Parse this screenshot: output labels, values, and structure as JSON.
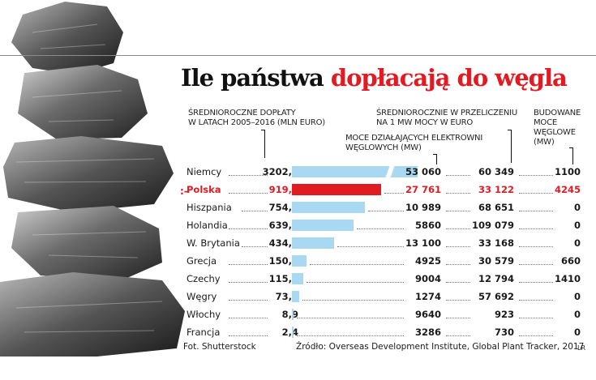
{
  "title_part1": "Ile państwa",
  "title_part2": "dopłacają do węgla",
  "headers": {
    "h1_line1": "Średnioroczne dopłaty",
    "h1_line2": "w latach 2005–2016 (mln euro)",
    "h2_line1": "Moce działających elektrowni",
    "h2_line2": "węglowych (MW)",
    "h3_line1": "Średniorocznie w przeliczeniu",
    "h3_line2": "na 1 MW mocy w euro",
    "h4_line1": "Budowane",
    "h4_line2": "moce",
    "h4_line3": "węglowe",
    "h4_line4": "(MW)"
  },
  "chart_data": {
    "type": "table",
    "title": "Ile państwa dopłacają do węgla",
    "columns": [
      "Średnioroczne dopłaty w latach 2005–2016 (mln euro)",
      "Moce działających elektrowni węglowych (MW)",
      "Średniorocznie w przeliczeniu na 1 MW mocy w euro",
      "Budowane moce węglowe (MW)"
    ],
    "highlight": "Polska",
    "highlight_color": "#e11b22",
    "bar_color": "#a9d8f2",
    "bar_series": "subsidy",
    "rows": [
      {
        "country": "Niemcy",
        "subsidy": 3202.1,
        "subsidy_label": "3202,1",
        "capacity_label": "53 060",
        "per_mw_label": "60 349",
        "building_label": "1100",
        "bar_broken": true
      },
      {
        "country": "Polska",
        "subsidy": 919.5,
        "subsidy_label": "919,5",
        "capacity_label": "27 761",
        "per_mw_label": "33 122",
        "building_label": "4245",
        "bar_broken": false
      },
      {
        "country": "Hiszpania",
        "subsidy": 754.4,
        "subsidy_label": "754,4",
        "capacity_label": "10 989",
        "per_mw_label": "68 651",
        "building_label": "0",
        "bar_broken": false
      },
      {
        "country": "Holandia",
        "subsidy": 639.2,
        "subsidy_label": "639,2",
        "capacity_label": "5860",
        "per_mw_label": "109 079",
        "building_label": "0",
        "bar_broken": false
      },
      {
        "country": "W. Brytania",
        "subsidy": 434.5,
        "subsidy_label": "434,5",
        "capacity_label": "13 100",
        "per_mw_label": "33 168",
        "building_label": "0",
        "bar_broken": false
      },
      {
        "country": "Grecja",
        "subsidy": 150.6,
        "subsidy_label": "150,6",
        "capacity_label": "4925",
        "per_mw_label": "30 579",
        "building_label": "660",
        "bar_broken": false
      },
      {
        "country": "Czechy",
        "subsidy": 115.2,
        "subsidy_label": "115,2",
        "capacity_label": "9004",
        "per_mw_label": "12 794",
        "building_label": "1410",
        "bar_broken": false
      },
      {
        "country": "Węgry",
        "subsidy": 73.5,
        "subsidy_label": "73,5",
        "capacity_label": "1274",
        "per_mw_label": "57 692",
        "building_label": "0",
        "bar_broken": false
      },
      {
        "country": "Włochy",
        "subsidy": 8.9,
        "subsidy_label": "8,9",
        "capacity_label": "9640",
        "per_mw_label": "923",
        "building_label": "0",
        "bar_broken": false
      },
      {
        "country": "Francja",
        "subsidy": 2.4,
        "subsidy_label": "2,4",
        "capacity_label": "3286",
        "per_mw_label": "730",
        "building_label": "0",
        "bar_broken": false
      }
    ]
  },
  "footer": {
    "photo_credit": "Fot. Shutterstock",
    "source": "Źródło: Overseas Development Institute, Global Plant Tracker, 2017",
    "signature": "LR"
  },
  "marker_glyph": ":-"
}
